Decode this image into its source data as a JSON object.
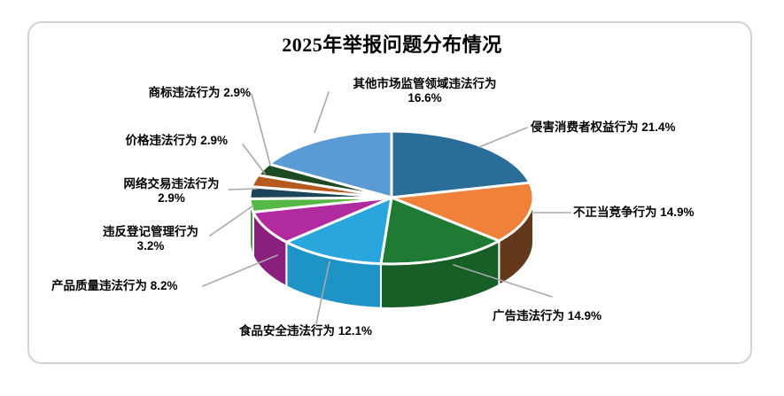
{
  "chart_data": {
    "type": "pie",
    "style": "pie-3d",
    "title": "2025年举报问题分布情况",
    "start_angle": 0,
    "direction": "clockwise",
    "total": 100.0,
    "label_position": "outside-with-leader-lines",
    "leader_color": "#a9a9a9",
    "slice_border_color": "#ffffff",
    "slices": [
      {
        "id": "consumer-rights",
        "label": "侵害消费者权益行为",
        "value": 21.4,
        "pct": "21.4%",
        "color": "#2A6D99",
        "side_color": "#1D4E6E"
      },
      {
        "id": "unfair-competition",
        "label": "不正当竞争行为",
        "value": 14.9,
        "pct": "14.9%",
        "color": "#F0813B",
        "side_color": "#63381B"
      },
      {
        "id": "advertising",
        "label": "广告违法行为",
        "value": 14.9,
        "pct": "14.9%",
        "color": "#1F7A33",
        "side_color": "#175F27"
      },
      {
        "id": "food-safety",
        "label": "食品安全违法行为",
        "value": 12.1,
        "pct": "12.1%",
        "color": "#29A7DC",
        "side_color": "#1E93C6"
      },
      {
        "id": "product-quality",
        "label": "产品质量违法行为",
        "value": 8.2,
        "pct": "8.2%",
        "color": "#B22AA0",
        "side_color": "#8A1F7E"
      },
      {
        "id": "registration",
        "label": "违反登记管理行为",
        "value": 3.2,
        "pct": "3.2%",
        "color": "#55B845",
        "side_color": "#3E8F33"
      },
      {
        "id": "online-transaction",
        "label": "网络交易违法行为",
        "value": 2.9,
        "pct": "2.9%",
        "color": "#1B4559",
        "side_color": "#12303F"
      },
      {
        "id": "price",
        "label": "价格违法行为",
        "value": 2.9,
        "pct": "2.9%",
        "color": "#B5591F",
        "side_color": "#7E3D14"
      },
      {
        "id": "trademark",
        "label": "商标违法行为",
        "value": 2.9,
        "pct": "2.9%",
        "color": "#1E4A22",
        "side_color": "#143318"
      },
      {
        "id": "other-market",
        "label": "其他市场监管领域违法行为",
        "value": 16.6,
        "pct": "16.6%",
        "color": "#5B9BD5",
        "side_color": "#3F739F"
      }
    ]
  }
}
